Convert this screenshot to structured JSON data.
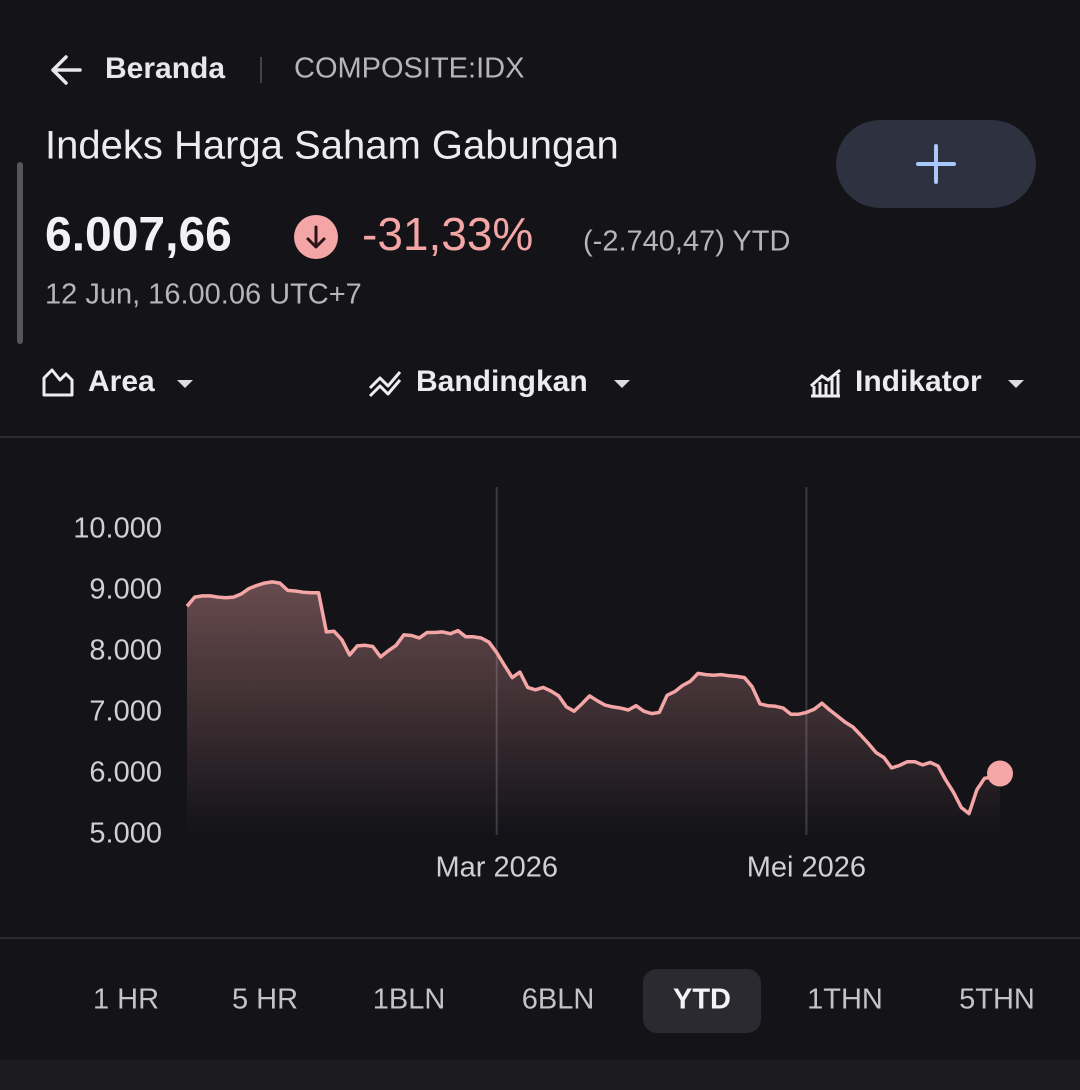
{
  "header": {
    "back": "Beranda",
    "symbol": "COMPOSITE:IDX",
    "title": "Indeks Harga Saham Gabungan",
    "price": "6.007,66",
    "change_percent": "-31,33%",
    "change_abs": "(-2.740,47) YTD",
    "timestamp": "12 Jun, 16.00.06 UTC+7"
  },
  "toolbar": [
    "Area",
    "Bandingkan",
    "Indikator"
  ],
  "tabs": [
    "1 HR",
    "5 HR",
    "1BLN",
    "6BLN",
    "YTD",
    "1THN",
    "5THN"
  ],
  "chart_data": {
    "type": "area",
    "color": "#f4a6a6",
    "categories": [
      null,
      null,
      null,
      null,
      null,
      null,
      null,
      null,
      null,
      null,
      null,
      null,
      null,
      null,
      null,
      null,
      null,
      null,
      null,
      null,
      null,
      null,
      null,
      null,
      null,
      null,
      null,
      null,
      null,
      null,
      null,
      null,
      null,
      null,
      null,
      null,
      null,
      null,
      null,
      null,
      "Mar 2026",
      null,
      null,
      null,
      null,
      null,
      null,
      null,
      null,
      null,
      null,
      null,
      null,
      null,
      null,
      null,
      null,
      null,
      null,
      null,
      null,
      null,
      null,
      null,
      null,
      null,
      null,
      null,
      null,
      null,
      null,
      null,
      null,
      null,
      null,
      null,
      null,
      null,
      null,
      null,
      "Mei 2026",
      null,
      null,
      null,
      null,
      null,
      null,
      null,
      null,
      null,
      null,
      null,
      null,
      null,
      null,
      null,
      null,
      null,
      null,
      null,
      null,
      null,
      null,
      null,
      null,
      null
    ],
    "values": [
      8750,
      8900,
      8920,
      8920,
      8900,
      8890,
      8900,
      8950,
      9040,
      9090,
      9130,
      9150,
      9130,
      9010,
      9000,
      8980,
      8970,
      8970,
      8330,
      8340,
      8200,
      7950,
      8100,
      8110,
      8090,
      7920,
      8020,
      8110,
      8280,
      8270,
      8230,
      8320,
      8320,
      8330,
      8300,
      8350,
      8250,
      8250,
      8230,
      8160,
      7990,
      7780,
      7580,
      7670,
      7420,
      7380,
      7420,
      7360,
      7280,
      7100,
      7030,
      7150,
      7280,
      7200,
      7130,
      7100,
      7080,
      7050,
      7120,
      7030,
      6990,
      7010,
      7290,
      7350,
      7450,
      7520,
      7650,
      7630,
      7620,
      7630,
      7610,
      7600,
      7580,
      7430,
      7150,
      7120,
      7110,
      7080,
      6980,
      6980,
      7010,
      7060,
      7160,
      7050,
      6950,
      6850,
      6770,
      6640,
      6500,
      6350,
      6270,
      6100,
      6140,
      6200,
      6200,
      6150,
      6190,
      6130,
      5900,
      5700,
      5450,
      5350,
      5740,
      5930,
      5950,
      6007.66
    ],
    "ylim": [
      5000,
      10000
    ],
    "yticks": [
      {
        "value": 5000,
        "label": "5.000"
      },
      {
        "value": 6000,
        "label": "6.000"
      },
      {
        "value": 7000,
        "label": "7.000"
      },
      {
        "value": 8000,
        "label": "8.000"
      },
      {
        "value": 9000,
        "label": "9.000"
      },
      {
        "value": 10000,
        "label": "10.000"
      }
    ]
  }
}
